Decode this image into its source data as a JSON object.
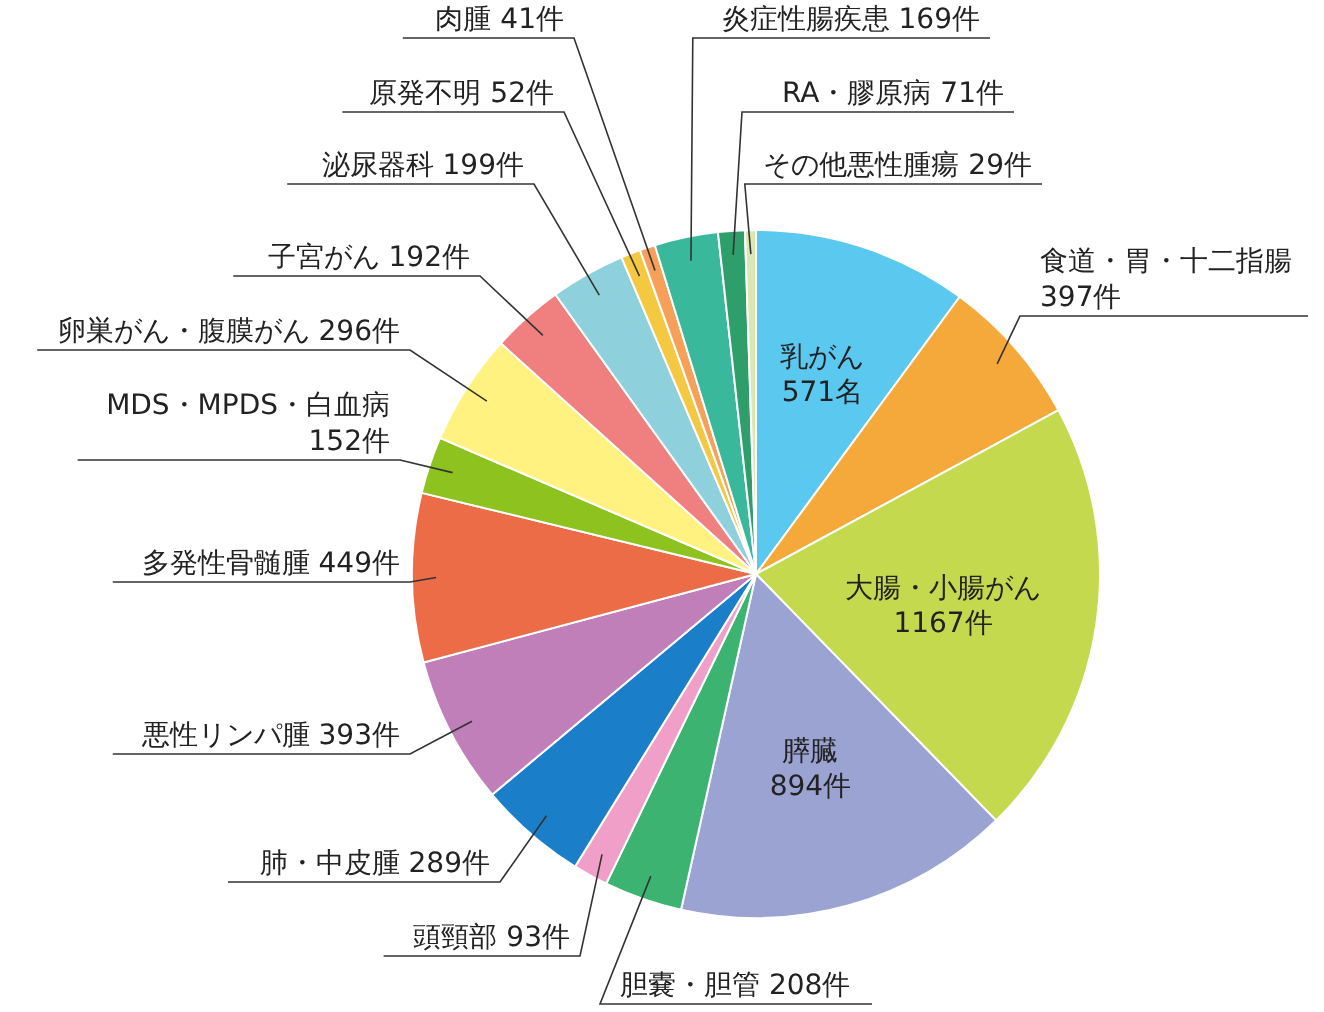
{
  "chart_data": {
    "type": "pie",
    "categories": [
      "乳がん",
      "食道・胃・十二指腸",
      "大腸・小腸がん",
      "膵臓",
      "胆嚢・胆管",
      "頭頸部",
      "肺・中皮腫",
      "悪性リンパ腫",
      "多発性骨髄腫",
      "MDS・MPDS・白血病",
      "卵巣がん・腹膜がん",
      "子宮がん",
      "泌尿器科",
      "原発不明",
      "肉腫",
      "炎症性腸疾患",
      "RA・膠原病",
      "その他悪性腫瘍"
    ],
    "values": [
      571,
      397,
      1167,
      894,
      208,
      93,
      289,
      393,
      449,
      152,
      296,
      192,
      199,
      52,
      41,
      169,
      71,
      29
    ],
    "value_labels": [
      "571名",
      "397件",
      "1167件",
      "894件",
      "208件",
      "93件",
      "289件",
      "393件",
      "449件",
      "152件",
      "296件",
      "192件",
      "199件",
      "52件",
      "41件",
      "169件",
      "71件",
      "29件"
    ],
    "colors": [
      "#5bc8f0",
      "#f5a93a",
      "#c5d94e",
      "#9ba3d2",
      "#3cb371",
      "#f0a0c8",
      "#1a7fc8",
      "#c07fb8",
      "#ec6c47",
      "#8dc21f",
      "#fff280",
      "#f08080",
      "#8ed0dc",
      "#f5c842",
      "#f6a05a",
      "#3ab89c",
      "#2e9e6a",
      "#d8e8b0"
    ]
  }
}
